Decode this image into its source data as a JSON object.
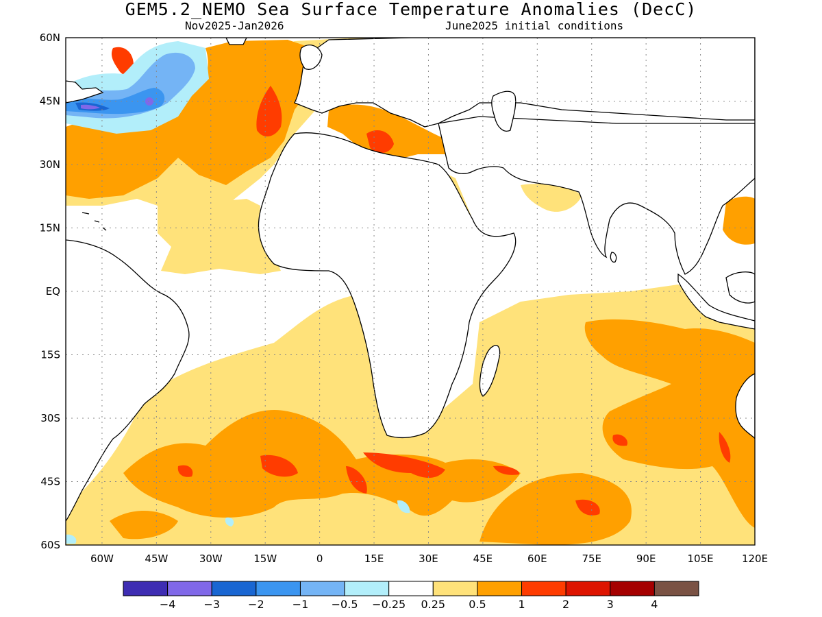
{
  "title": "GEM5.2_NEMO Sea Surface Temperature Anomalies (DecC)",
  "subtitle_left": "Nov2025-Jan2026",
  "subtitle_right": "June2025 initial conditions",
  "map": {
    "lon_range": [
      -70,
      120
    ],
    "lat_range": [
      -60,
      60
    ],
    "lat_ticks": [
      {
        "value": 60,
        "label": "60N"
      },
      {
        "value": 45,
        "label": "45N"
      },
      {
        "value": 30,
        "label": "30N"
      },
      {
        "value": 15,
        "label": "15N"
      },
      {
        "value": 0,
        "label": "EQ"
      },
      {
        "value": -15,
        "label": "15S"
      },
      {
        "value": -30,
        "label": "30S"
      },
      {
        "value": -45,
        "label": "45S"
      },
      {
        "value": -60,
        "label": "60S"
      }
    ],
    "lon_ticks": [
      {
        "value": -60,
        "label": "60W"
      },
      {
        "value": -45,
        "label": "45W"
      },
      {
        "value": -30,
        "label": "30W"
      },
      {
        "value": -15,
        "label": "15W"
      },
      {
        "value": 0,
        "label": "0"
      },
      {
        "value": 15,
        "label": "15E"
      },
      {
        "value": 30,
        "label": "30E"
      },
      {
        "value": 45,
        "label": "45E"
      },
      {
        "value": 60,
        "label": "60E"
      },
      {
        "value": 75,
        "label": "75E"
      },
      {
        "value": 90,
        "label": "90E"
      },
      {
        "value": 105,
        "label": "105E"
      },
      {
        "value": 120,
        "label": "120E"
      }
    ]
  },
  "colorbar": {
    "colors": [
      "#3e2db3",
      "#8068e8",
      "#1966d2",
      "#3b95f0",
      "#74b4f5",
      "#b2eefa",
      "#ffffff",
      "#ffe27a",
      "#ffa000",
      "#ff3c00",
      "#de1400",
      "#a50000",
      "#7a5244"
    ],
    "labels": [
      "−4",
      "−3",
      "−2",
      "−1",
      "−0.5",
      "−0.25",
      "0.25",
      "0.5",
      "1",
      "2",
      "3",
      "4"
    ]
  }
}
